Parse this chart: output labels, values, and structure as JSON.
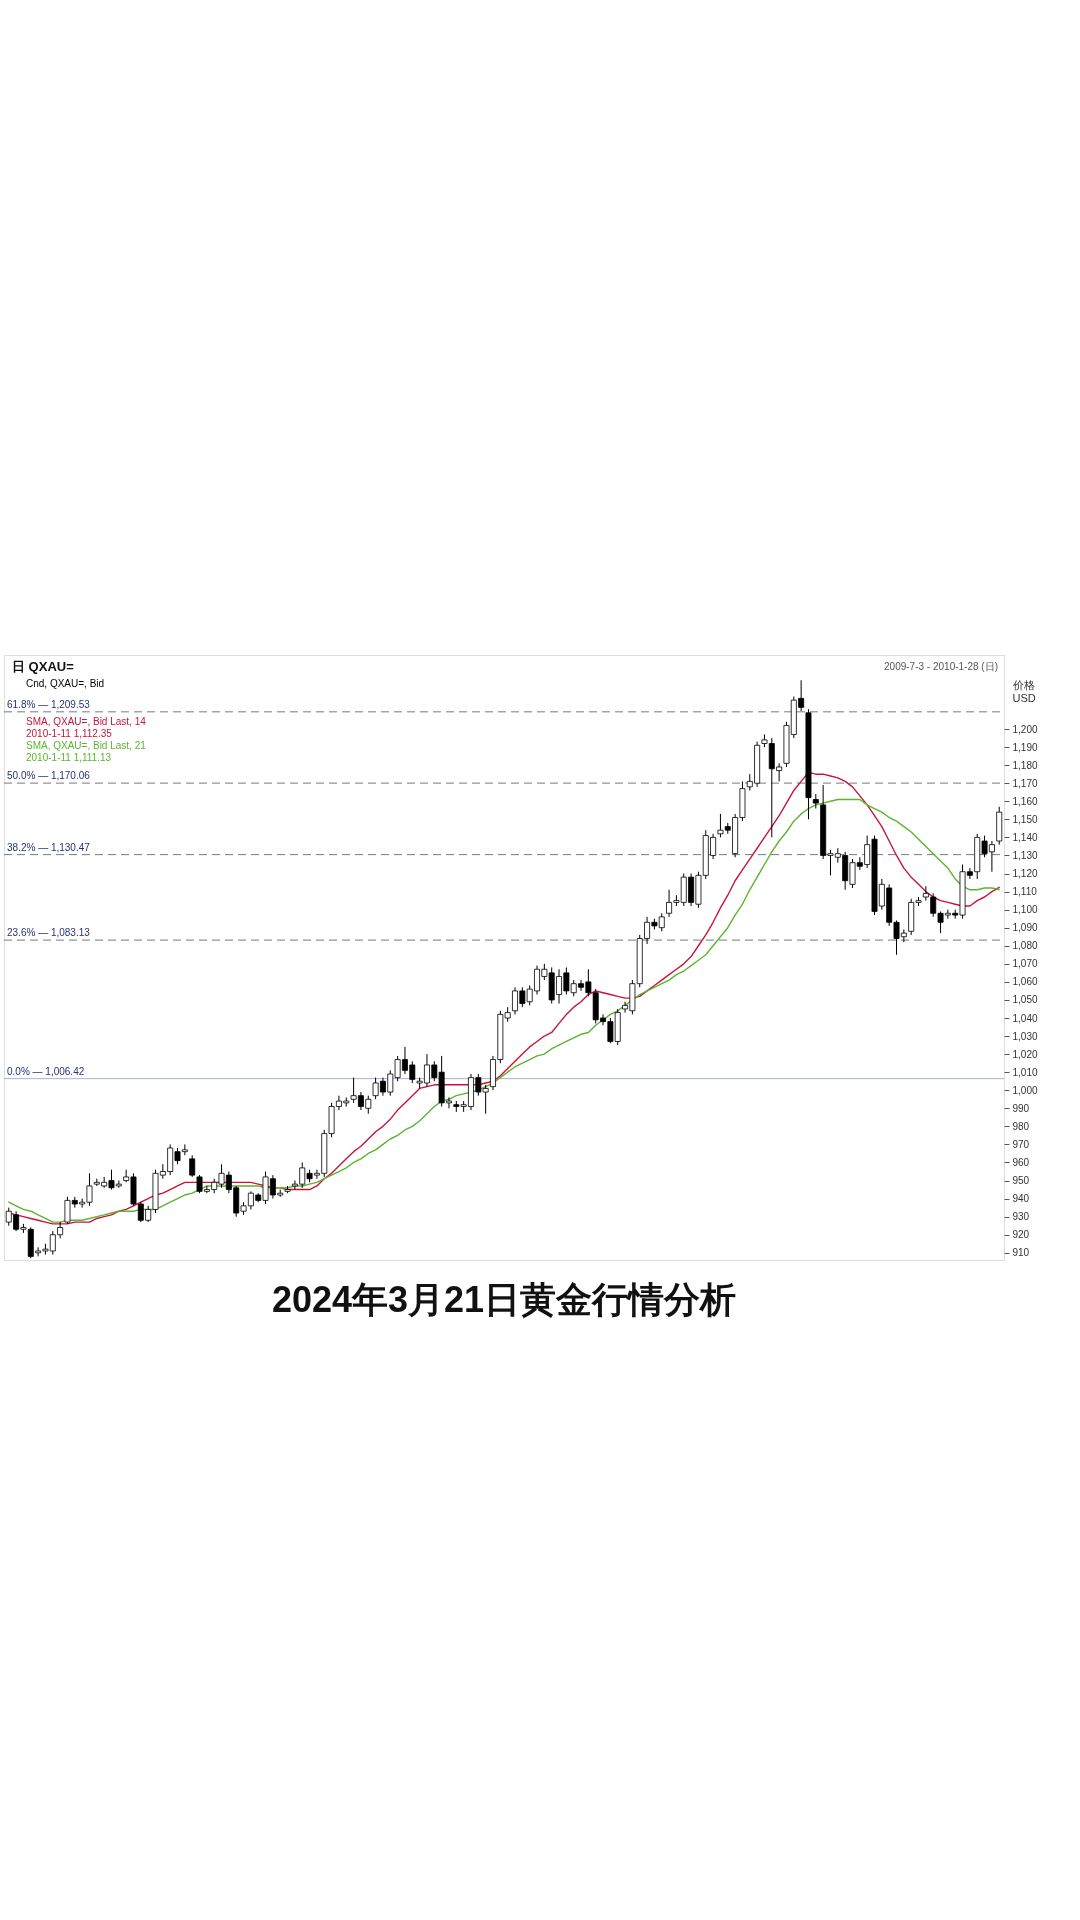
{
  "chart_data": {
    "type": "candlestick",
    "title": "2024年3月21日黄金行情分析",
    "subtitle": "日 QXAU=",
    "ylabel": "价格\nUSD",
    "annotations": [
      "2009-7-3 - 2010-1-28 (日)",
      "Cnd, QXAU=, Bid"
    ],
    "categories": [
      null,
      null,
      null,
      null,
      null,
      null,
      null,
      null,
      null,
      null,
      null,
      null,
      null,
      null,
      null,
      null,
      null,
      null,
      null,
      null,
      null,
      null,
      null,
      null,
      null,
      null,
      null,
      null,
      null,
      null,
      null,
      null,
      null,
      null,
      null,
      null,
      null,
      null,
      null,
      null,
      null,
      null,
      null,
      null,
      null,
      null,
      null,
      null,
      null,
      null,
      null,
      null,
      null,
      null,
      null,
      null,
      null,
      null,
      null,
      null,
      null,
      null,
      null,
      null,
      null,
      null,
      null,
      null,
      null,
      null,
      null,
      null,
      null,
      null,
      null,
      null,
      null,
      null,
      null,
      null,
      null,
      null,
      null,
      null,
      null,
      null,
      null,
      null,
      null,
      null,
      null,
      null,
      null,
      null,
      null,
      null,
      null,
      null,
      null,
      null,
      null,
      null,
      null,
      null,
      null,
      null,
      null,
      null,
      null,
      null,
      null,
      null,
      null,
      null,
      null,
      null,
      null,
      null,
      null,
      null,
      null,
      null,
      null,
      null,
      null,
      null,
      null,
      null,
      null,
      null,
      null,
      null,
      null,
      null,
      null,
      null
    ],
    "color": "#000000",
    "ohlc": [
      [
        927,
        935,
        925,
        933
      ],
      [
        931,
        933,
        922,
        923
      ],
      [
        923,
        926,
        921,
        924
      ],
      [
        923,
        924,
        907,
        908
      ],
      [
        910,
        913,
        908,
        911
      ],
      [
        911,
        915,
        909,
        912
      ],
      [
        911,
        922,
        909,
        920
      ],
      [
        920,
        927,
        918,
        924
      ],
      [
        927,
        941,
        926,
        939
      ],
      [
        939,
        941,
        935,
        937
      ],
      [
        937,
        940,
        935,
        938
      ],
      [
        938,
        954,
        936,
        947
      ],
      [
        948,
        951,
        947,
        949
      ],
      [
        947,
        952,
        946,
        949
      ],
      [
        950,
        956,
        945,
        946
      ],
      [
        947,
        950,
        946,
        948
      ],
      [
        950,
        956,
        949,
        952
      ],
      [
        952,
        954,
        936,
        937
      ],
      [
        937,
        938,
        927,
        928
      ],
      [
        928,
        936,
        927,
        934
      ],
      [
        934,
        956,
        932,
        954
      ],
      [
        953,
        959,
        951,
        955
      ],
      [
        955,
        970,
        953,
        968
      ],
      [
        966,
        968,
        959,
        961
      ],
      [
        966,
        970,
        964,
        967
      ],
      [
        962,
        964,
        952,
        953
      ],
      [
        952,
        953,
        943,
        944
      ],
      [
        944,
        947,
        943,
        945
      ],
      [
        945,
        951,
        943,
        949
      ],
      [
        948,
        959,
        946,
        954
      ],
      [
        953,
        955,
        943,
        945
      ],
      [
        946,
        947,
        930,
        932
      ],
      [
        933,
        938,
        931,
        936
      ],
      [
        936,
        944,
        934,
        943
      ],
      [
        942,
        943,
        938,
        939
      ],
      [
        939,
        955,
        937,
        952
      ],
      [
        951,
        953,
        940,
        942
      ],
      [
        942,
        945,
        941,
        943
      ],
      [
        944,
        947,
        943,
        945
      ],
      [
        947,
        950,
        945,
        948
      ],
      [
        948,
        960,
        946,
        957
      ],
      [
        954,
        956,
        949,
        951
      ],
      [
        953,
        956,
        951,
        954
      ],
      [
        954,
        978,
        952,
        976
      ],
      [
        976,
        993,
        974,
        991
      ],
      [
        991,
        997,
        989,
        994
      ],
      [
        993,
        996,
        991,
        994
      ],
      [
        995,
        1007,
        993,
        997
      ],
      [
        997,
        999,
        989,
        991
      ],
      [
        990,
        997,
        987,
        995
      ],
      [
        997,
        1007,
        995,
        1004
      ],
      [
        1005,
        1007,
        997,
        999
      ],
      [
        999,
        1011,
        997,
        1009
      ],
      [
        1007,
        1019,
        1005,
        1017
      ],
      [
        1017,
        1024,
        1009,
        1011
      ],
      [
        1014,
        1016,
        1004,
        1006
      ],
      [
        1004,
        1007,
        1001,
        1005
      ],
      [
        1004,
        1020,
        1002,
        1014
      ],
      [
        1014,
        1016,
        1005,
        1007
      ],
      [
        1010,
        1019,
        991,
        993
      ],
      [
        993,
        996,
        990,
        994
      ],
      [
        992,
        994,
        988,
        991
      ],
      [
        991,
        994,
        988,
        992
      ],
      [
        991,
        1009,
        989,
        1007
      ],
      [
        1007,
        1009,
        997,
        999
      ],
      [
        999,
        1003,
        987,
        1001
      ],
      [
        1002,
        1019,
        1000,
        1017
      ],
      [
        1017,
        1044,
        1015,
        1042
      ],
      [
        1040,
        1046,
        1038,
        1043
      ],
      [
        1044,
        1057,
        1042,
        1055
      ],
      [
        1055,
        1057,
        1046,
        1048
      ],
      [
        1049,
        1058,
        1047,
        1056
      ],
      [
        1055,
        1069,
        1053,
        1067
      ],
      [
        1063,
        1070,
        1061,
        1067
      ],
      [
        1065,
        1068,
        1048,
        1050
      ],
      [
        1053,
        1067,
        1048,
        1063
      ],
      [
        1065,
        1068,
        1053,
        1055
      ],
      [
        1054,
        1061,
        1052,
        1059
      ],
      [
        1059,
        1061,
        1055,
        1057
      ],
      [
        1060,
        1067,
        1052,
        1054
      ],
      [
        1054,
        1056,
        1037,
        1039
      ],
      [
        1040,
        1042,
        1036,
        1038
      ],
      [
        1038,
        1040,
        1026,
        1027
      ],
      [
        1027,
        1045,
        1025,
        1043
      ],
      [
        1045,
        1049,
        1043,
        1047
      ],
      [
        1044,
        1061,
        1042,
        1059
      ],
      [
        1059,
        1086,
        1057,
        1084
      ],
      [
        1084,
        1096,
        1081,
        1093
      ],
      [
        1093,
        1095,
        1089,
        1091
      ],
      [
        1090,
        1098,
        1088,
        1096
      ],
      [
        1098,
        1111,
        1096,
        1104
      ],
      [
        1104,
        1108,
        1102,
        1105
      ],
      [
        1104,
        1120,
        1102,
        1118
      ],
      [
        1118,
        1120,
        1102,
        1104
      ],
      [
        1103,
        1121,
        1101,
        1119
      ],
      [
        1119,
        1144,
        1117,
        1141
      ],
      [
        1130,
        1142,
        1128,
        1140
      ],
      [
        1142,
        1153,
        1140,
        1144
      ],
      [
        1146,
        1148,
        1142,
        1144
      ],
      [
        1131,
        1153,
        1129,
        1151
      ],
      [
        1151,
        1171,
        1149,
        1167
      ],
      [
        1168,
        1175,
        1166,
        1171
      ],
      [
        1170,
        1193,
        1168,
        1191
      ],
      [
        1192,
        1197,
        1190,
        1194
      ],
      [
        1192,
        1195,
        1140,
        1178
      ],
      [
        1177,
        1181,
        1171,
        1179
      ],
      [
        1181,
        1204,
        1179,
        1202
      ],
      [
        1197,
        1218,
        1195,
        1216
      ],
      [
        1217,
        1227,
        1210,
        1212
      ],
      [
        1209,
        1211,
        1150,
        1162
      ],
      [
        1161,
        1164,
        1156,
        1159
      ],
      [
        1158,
        1169,
        1128,
        1130
      ],
      [
        1130,
        1133,
        1119,
        1131
      ],
      [
        1129,
        1134,
        1126,
        1131
      ],
      [
        1130,
        1132,
        1111,
        1116
      ],
      [
        1114,
        1128,
        1112,
        1126
      ],
      [
        1126,
        1129,
        1122,
        1124
      ],
      [
        1125,
        1141,
        1123,
        1136
      ],
      [
        1139,
        1141,
        1097,
        1099
      ],
      [
        1102,
        1117,
        1100,
        1114
      ],
      [
        1112,
        1114,
        1091,
        1093
      ],
      [
        1093,
        1094,
        1075,
        1084
      ],
      [
        1085,
        1089,
        1082,
        1087
      ],
      [
        1088,
        1106,
        1086,
        1104
      ],
      [
        1104,
        1107,
        1102,
        1105
      ],
      [
        1107,
        1113,
        1105,
        1109
      ],
      [
        1107,
        1109,
        1096,
        1098
      ],
      [
        1098,
        1099,
        1087,
        1093
      ],
      [
        1097,
        1100,
        1095,
        1098
      ],
      [
        1098,
        1100,
        1095,
        1097
      ],
      [
        1097,
        1125,
        1095,
        1121
      ],
      [
        1121,
        1123,
        1117,
        1119
      ],
      [
        1121,
        1142,
        1117,
        1140
      ],
      [
        1138,
        1141,
        1129,
        1131
      ],
      [
        1132,
        1138,
        1121,
        1136
      ],
      [
        1138,
        1157,
        1136,
        1154
      ]
    ],
    "series": [
      {
        "name": "SMA, QXAU=, Bid Last, 14\n2010-1-11 1,112.35",
        "type": "line",
        "color": "#c8143c",
        "values": [
          932,
          931,
          930,
          929,
          928,
          927,
          926,
          926,
          926,
          927,
          927,
          927,
          929,
          930,
          931,
          933,
          934,
          936,
          938,
          940,
          942,
          943,
          945,
          947,
          949,
          949,
          949,
          949,
          949,
          949,
          949,
          949,
          949,
          949,
          948,
          947,
          946,
          946,
          945,
          945,
          945,
          945,
          947,
          951,
          954,
          958,
          962,
          966,
          969,
          973,
          977,
          980,
          984,
          989,
          993,
          997,
          1001,
          1002,
          1003,
          1003,
          1003,
          1003,
          1003,
          1003,
          1003,
          1004,
          1005,
          1008,
          1012,
          1016,
          1020,
          1024,
          1027,
          1030,
          1032,
          1037,
          1042,
          1046,
          1049,
          1053,
          1055,
          1054,
          1053,
          1052,
          1051,
          1051,
          1052,
          1055,
          1058,
          1061,
          1064,
          1067,
          1070,
          1074,
          1080,
          1086,
          1093,
          1101,
          1108,
          1116,
          1122,
          1128,
          1134,
          1140,
          1146,
          1152,
          1159,
          1166,
          1171,
          1176,
          1175,
          1175,
          1174,
          1173,
          1171,
          1168,
          1163,
          1158,
          1152,
          1146,
          1138,
          1130,
          1123,
          1118,
          1114,
          1110,
          1107,
          1105,
          1104,
          1103,
          1102,
          1102,
          1105,
          1107,
          1110,
          1112.35
        ]
      },
      {
        "name": "SMA, QXAU=, Bid Last, 21\n2010-1-11 1,111.13",
        "type": "line",
        "color": "#5cb531",
        "values": [
          938,
          936,
          934,
          933,
          931,
          929,
          927,
          927,
          928,
          928,
          928,
          929,
          930,
          931,
          932,
          933,
          933,
          933,
          934,
          934,
          934,
          936,
          938,
          940,
          942,
          943,
          945,
          947,
          947,
          947,
          947,
          947,
          947,
          947,
          947,
          946,
          946,
          946,
          946,
          947,
          947,
          948,
          949,
          951,
          953,
          955,
          957,
          960,
          962,
          965,
          967,
          970,
          973,
          975,
          978,
          980,
          983,
          987,
          991,
          994,
          995,
          997,
          998,
          999,
          1000,
          1002,
          1004,
          1007,
          1010,
          1013,
          1015,
          1017,
          1019,
          1020,
          1023,
          1025,
          1027,
          1029,
          1031,
          1032,
          1036,
          1039,
          1042,
          1044,
          1047,
          1050,
          1053,
          1055,
          1057,
          1059,
          1061,
          1064,
          1066,
          1069,
          1072,
          1075,
          1080,
          1085,
          1090,
          1097,
          1103,
          1111,
          1118,
          1125,
          1132,
          1138,
          1143,
          1149,
          1153,
          1156,
          1158,
          1159,
          1160,
          1161,
          1161,
          1161,
          1161,
          1158,
          1156,
          1154,
          1151,
          1149,
          1146,
          1143,
          1139,
          1135,
          1131,
          1127,
          1123,
          1117,
          1113,
          1111,
          1111,
          1112,
          1112,
          1111.13
        ]
      }
    ],
    "ylim": [
      906,
      1241
    ],
    "yticks": [
      910,
      920,
      930,
      940,
      950,
      960,
      970,
      980,
      990,
      {
        "value": 1000,
        "label": "1,000"
      },
      {
        "value": 1010,
        "label": "1,010"
      },
      {
        "value": 1020,
        "label": "1,020"
      },
      {
        "value": 1030,
        "label": "1,030"
      },
      {
        "value": 1040,
        "label": "1,040"
      },
      {
        "value": 1050,
        "label": "1,050"
      },
      {
        "value": 1060,
        "label": "1,060"
      },
      {
        "value": 1070,
        "label": "1,070"
      },
      {
        "value": 1080,
        "label": "1,080"
      },
      {
        "value": 1090,
        "label": "1,090"
      },
      {
        "value": 1100,
        "label": "1,100"
      },
      {
        "value": 1110,
        "label": "1,110"
      },
      {
        "value": 1120,
        "label": "1,120"
      },
      {
        "value": 1130,
        "label": "1,130"
      },
      {
        "value": 1140,
        "label": "1,140"
      },
      {
        "value": 1150,
        "label": "1,150"
      },
      {
        "value": 1160,
        "label": "1,160"
      },
      {
        "value": 1170,
        "label": "1,170"
      },
      {
        "value": 1180,
        "label": "1,180"
      },
      {
        "value": 1190,
        "label": "1,190"
      },
      {
        "value": 1200,
        "label": "1,200"
      }
    ],
    "ref_lines": [
      {
        "axis": "y",
        "value": 1209.53,
        "label": "61.8% — 1,209.53",
        "color": "#7a7a7a",
        "line_style": "dashed"
      },
      {
        "axis": "y",
        "value": 1170.06,
        "label": "50.0% — 1,170.06",
        "color": "#7a7a7a",
        "line_style": "dashed"
      },
      {
        "axis": "y",
        "value": 1130.47,
        "label": "38.2% — 1,130.47",
        "color": "#7a7a7a",
        "line_style": "dashed"
      },
      {
        "axis": "y",
        "value": 1083.13,
        "label": "23.6% — 1,083.13",
        "color": "#7a7a7a",
        "line_style": "dashed"
      },
      {
        "axis": "y",
        "value": 1006.42,
        "label": "0.0% — 1,006.42",
        "color": "#a9b3cc",
        "line_style": "solid"
      }
    ],
    "legend": "top left",
    "tick_labels": "y"
  }
}
